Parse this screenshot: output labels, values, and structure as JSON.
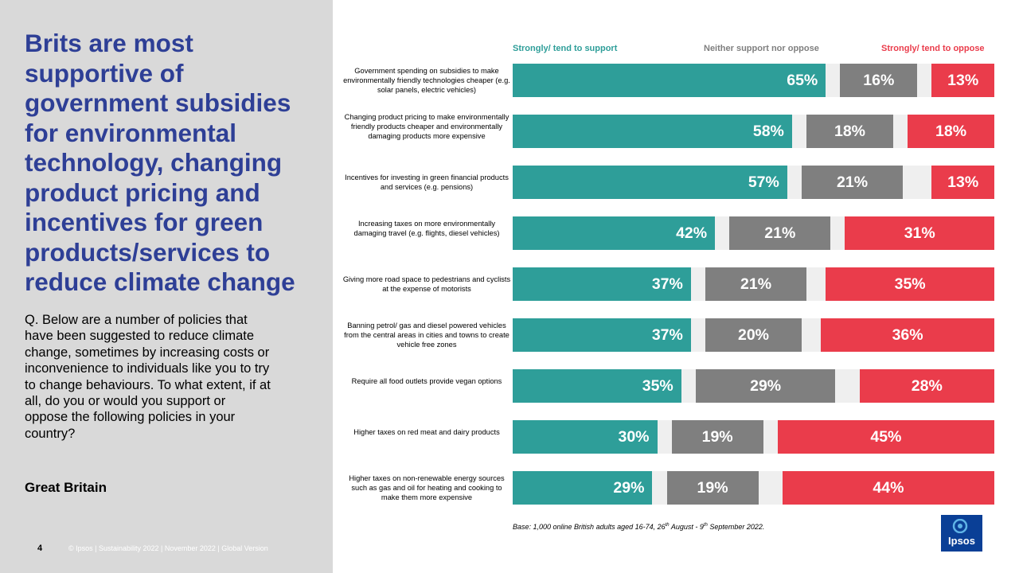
{
  "slide": {
    "headline": "Brits are most supportive of government subsidies for environmental technology, changing product pricing and incentives for green products/services to reduce climate change",
    "question": "Q. Below are a number of policies that have been suggested to reduce climate change, sometimes by increasing costs or inconvenience to individuals like you to try to change behaviours. To what extent, if at all, do you or would you support or oppose the following policies in your country?",
    "country": "Great Britain",
    "page_number": "4",
    "footer": "© Ipsos | Sustainability 2022 | November 2022 | Global Version",
    "base_note": {
      "pre": "Base: 1,000 online British adults aged 16-74, 26",
      "sup1": "th",
      "mid": " August - 9",
      "sup2": "th",
      "post": " September 2022."
    },
    "logo_text": "Ipsos"
  },
  "colors": {
    "support": "#2e9e99",
    "neither": "#7f7f7f",
    "oppose": "#ea3c4b",
    "headline": "#2e3f96",
    "logo": "#0a3f96"
  },
  "chart_data": {
    "type": "bar",
    "orientation": "horizontal",
    "stacking": "diverging (support left, neither centre, oppose right)",
    "legend": [
      "Strongly/ tend to support",
      "Neither support nor oppose",
      "Strongly/ tend to oppose"
    ],
    "value_suffix": "%",
    "categories": [
      "Government spending on subsidies to make environmentally friendly technologies cheaper (e.g. solar panels, electric vehicles)",
      "Changing product pricing to make environmentally friendly products cheaper and environmentally damaging products more expensive",
      "Incentives for investing in green financial products and services (e.g. pensions)",
      "Increasing taxes on more environmentally damaging travel (e.g. flights, diesel vehicles)",
      "Giving more road space to pedestrians and cyclists at the expense of motorists",
      "Banning petrol/ gas and diesel powered vehicles from the central areas in cities and towns to create vehicle free zones",
      "Require all food outlets provide vegan options",
      "Higher taxes on red meat and dairy products",
      "Higher taxes on non-renewable energy sources such as gas and oil for heating and cooking to make them more expensive"
    ],
    "series": [
      {
        "name": "Strongly/ tend to support",
        "values": [
          65,
          58,
          57,
          42,
          37,
          37,
          35,
          30,
          29
        ]
      },
      {
        "name": "Neither support nor oppose",
        "values": [
          16,
          18,
          21,
          21,
          21,
          20,
          29,
          19,
          19
        ]
      },
      {
        "name": "Strongly/ tend to oppose",
        "values": [
          13,
          18,
          13,
          31,
          35,
          36,
          28,
          45,
          44
        ]
      }
    ],
    "xlim": [
      0,
      100
    ]
  }
}
